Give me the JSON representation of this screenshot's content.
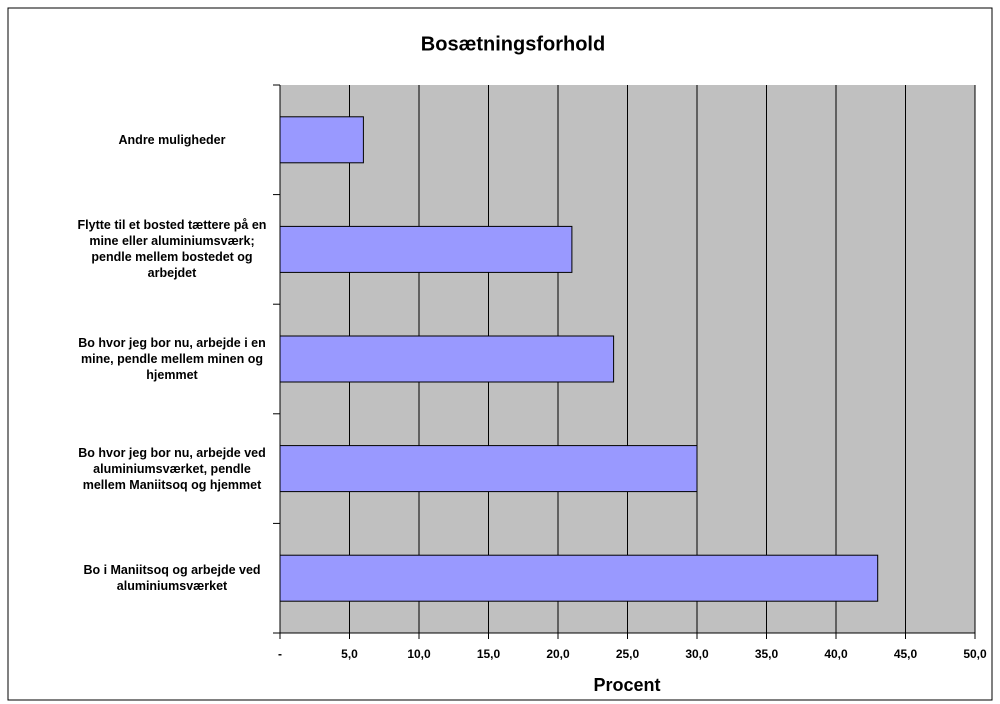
{
  "chart_data": {
    "type": "barh",
    "title": "Bosætningsforhold",
    "xlabel": "Procent",
    "categories": [
      "Andre muligheder",
      "Flytte til et bosted tættere på en mine eller aluminiumsværk; pendle mellem bostedet og arbejdet",
      "Bo hvor jeg bor nu, arbejde i en mine, pendle mellem minen og hjemmet",
      "Bo hvor jeg bor nu, arbejde ved aluminiumsværket, pendle mellem Maniitsoq og hjemmet",
      "Bo i Maniitsoq og arbejde ved aluminiumsværket"
    ],
    "values": [
      6,
      21,
      24,
      30,
      43
    ],
    "color": "#9999ff",
    "plot_background": "#c0c0c0",
    "xlim": [
      0,
      50
    ],
    "xticks": [
      {
        "value": 0,
        "label": "-"
      },
      {
        "value": 5,
        "label": "5,0"
      },
      {
        "value": 10,
        "label": "10,0"
      },
      {
        "value": 15,
        "label": "15,0"
      },
      {
        "value": 20,
        "label": "20,0"
      },
      {
        "value": 25,
        "label": "25,0"
      },
      {
        "value": 30,
        "label": "30,0"
      },
      {
        "value": 35,
        "label": "35,0"
      },
      {
        "value": 40,
        "label": "40,0"
      },
      {
        "value": 45,
        "label": "45,0"
      },
      {
        "value": 50,
        "label": "50,0"
      }
    ],
    "grid": true
  }
}
